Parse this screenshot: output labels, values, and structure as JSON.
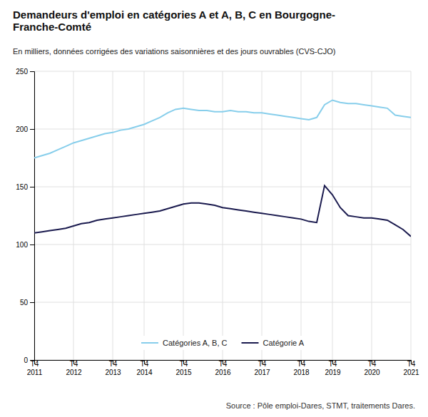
{
  "chart_data": {
    "type": "line",
    "title": "Demandeurs d'emploi en catégories A et A, B, C en Bourgogne-\nFranche-Comté",
    "subtitle": "En milliers, données corrigées des variations saisonnières et des jours ouvrables (CVS-CJO)",
    "source": "Source : Pôle emploi-Dares, STMT, traitements Dares.",
    "categories": [
      "T4\n2011",
      null,
      null,
      null,
      null,
      "T4\n2012",
      null,
      null,
      null,
      null,
      "T4\n2013",
      null,
      null,
      null,
      "T4\n2014",
      null,
      null,
      null,
      null,
      "T4\n2015",
      null,
      null,
      null,
      null,
      "T4\n2016",
      null,
      null,
      null,
      null,
      "T4\n2017",
      null,
      null,
      null,
      null,
      "T4\n2018",
      null,
      null,
      null,
      "T4\n2019",
      null,
      null,
      null,
      null,
      "T4\n2020",
      null,
      null,
      null,
      null,
      "T4\n2021"
    ],
    "series": [
      {
        "name": "Catégories A, B, C",
        "color": "#87CEEB",
        "values": [
          175,
          177,
          179,
          182,
          185,
          188,
          190,
          192,
          194,
          196,
          197,
          199,
          200,
          202,
          204,
          207,
          210,
          214,
          217,
          218,
          217,
          216,
          216,
          215,
          215,
          216,
          215,
          215,
          214,
          214,
          213,
          212,
          211,
          210,
          209,
          208,
          210,
          221,
          225,
          223,
          222,
          222,
          221,
          220,
          219,
          218,
          212,
          211,
          210
        ]
      },
      {
        "name": "Catégorie A",
        "color": "#1a1a4e",
        "values": [
          110,
          111,
          112,
          113,
          114,
          116,
          118,
          119,
          121,
          122,
          123,
          124,
          125,
          126,
          127,
          128,
          129,
          131,
          133,
          135,
          136,
          136,
          135,
          134,
          132,
          131,
          130,
          129,
          128,
          127,
          126,
          125,
          124,
          123,
          122,
          120,
          119,
          151,
          143,
          132,
          125,
          124,
          123,
          123,
          122,
          121,
          117,
          113,
          107
        ]
      }
    ],
    "ylim": [
      0,
      250
    ],
    "yticks": [
      0,
      50,
      100,
      150,
      200,
      250
    ],
    "grid": true,
    "legend": "lower center"
  }
}
